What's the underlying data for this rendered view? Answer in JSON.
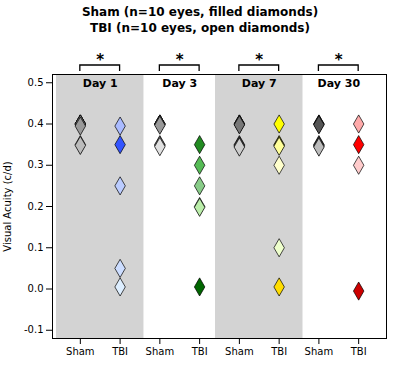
{
  "chart_data": {
    "type": "scatter",
    "title": "Sham (n=10 eyes, filled diamonds)\nTBI (n=10 eyes, open diamonds)",
    "ylabel": "Visual Acuity (c/d)",
    "ylim": [
      -0.12,
      0.52
    ],
    "yticks": [
      -0.1,
      {
        "value": 0,
        "label": "0.0"
      },
      0.1,
      0.2,
      0.3,
      0.4,
      0.5
    ],
    "marker": "diamond",
    "shade_color": "#d3d3d3",
    "groups": [
      {
        "name": "Day 1",
        "annotation": "*",
        "shaded": true,
        "categories": [
          "Sham",
          "TBI"
        ],
        "values": [
          [
            0.4,
            0.4,
            0.4,
            0.4,
            0.4,
            0.395,
            0.35,
            0.348
          ],
          [
            0.395,
            0.35,
            0.25,
            0.05,
            0.005
          ]
        ],
        "colors": [
          [
            "#2b2b2b",
            "#3c3c3c",
            "#555555",
            "#6e6e6e",
            "#888888",
            "#999999",
            "#aaaaaa",
            "#bbbbbb"
          ],
          [
            "#aabbff",
            "#3355ff",
            "#bbccff",
            "#ccddff",
            "#ddeeff"
          ]
        ]
      },
      {
        "name": "Day 3",
        "annotation": "*",
        "shaded": false,
        "categories": [
          "Sham",
          "TBI"
        ],
        "values": [
          [
            0.4,
            0.4,
            0.4,
            0.4,
            0.397,
            0.35,
            0.348,
            0.345
          ],
          [
            0.35,
            0.3,
            0.25,
            0.2,
            0.198,
            0.005
          ]
        ],
        "colors": [
          [
            "#2b2b2b",
            "#3c3c3c",
            "#555555",
            "#777777",
            "#999999",
            "#c0c0c0",
            "#d0d0d0",
            "#e0e0e0"
          ],
          [
            "#228B22",
            "#55bb55",
            "#88cc88",
            "#aaddaa",
            "#bbeeaa",
            "#006600"
          ]
        ]
      },
      {
        "name": "Day 7",
        "annotation": "*",
        "shaded": true,
        "categories": [
          "Sham",
          "TBI"
        ],
        "values": [
          [
            0.4,
            0.4,
            0.4,
            0.398,
            0.35,
            0.348,
            0.346,
            0.344
          ],
          [
            0.4,
            0.35,
            0.348,
            0.346,
            0.3,
            0.1,
            0.005
          ]
        ],
        "colors": [
          [
            "#2b2b2b",
            "#3c3c3c",
            "#555555",
            "#777777",
            "#999999",
            "#aaaaaa",
            "#bbbbbb",
            "#cccccc"
          ],
          [
            "#ffff00",
            "#ffff33",
            "#ffff66",
            "#ffff99",
            "#ffffcc",
            "#eeffcc",
            "#ffdd00"
          ]
        ]
      },
      {
        "name": "Day 30",
        "annotation": "*",
        "shaded": false,
        "categories": [
          "Sham",
          "TBI"
        ],
        "values": [
          [
            0.4,
            0.4,
            0.398,
            0.35,
            0.348,
            0.346,
            0.344
          ],
          [
            0.4,
            0.35,
            0.3,
            -0.005
          ]
        ],
        "colors": [
          [
            "#2b2b2b",
            "#3c3c3c",
            "#555555",
            "#777777",
            "#999999",
            "#aaaaaa",
            "#bbbbbb"
          ],
          [
            "#ffaaaa",
            "#ff0000",
            "#ffcccc",
            "#cc0000"
          ]
        ]
      }
    ]
  }
}
